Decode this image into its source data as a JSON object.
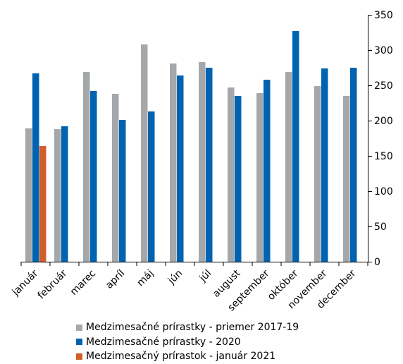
{
  "chart_data": {
    "type": "bar",
    "title": "",
    "xlabel": "",
    "ylabel": "",
    "categories": [
      "január",
      "február",
      "marec",
      "apríl",
      "máj",
      "jún",
      "júl",
      "august",
      "september",
      "október",
      "november",
      "december"
    ],
    "series": [
      {
        "name": "Medzimesačné prírastky - priemer 2017-19",
        "color": "#a5a8aa",
        "values": [
          189,
          188,
          269,
          238,
          308,
          281,
          283,
          247,
          239,
          269,
          249,
          235
        ]
      },
      {
        "name": "Medzimesačné prírastky - 2020",
        "color": "#0063b1",
        "values": [
          267,
          192,
          242,
          201,
          213,
          264,
          275,
          235,
          258,
          327,
          274,
          275
        ]
      },
      {
        "name": "Medzimesačný prírastok - január 2021",
        "color": "#d25f29",
        "values": [
          164,
          null,
          null,
          null,
          null,
          null,
          null,
          null,
          null,
          null,
          null,
          null
        ]
      }
    ],
    "ylim": [
      0,
      350
    ],
    "yticks": [
      0,
      50,
      100,
      150,
      200,
      250,
      300,
      350
    ],
    "y_axis_position": "right",
    "grid": false,
    "legend_position": "bottom"
  }
}
